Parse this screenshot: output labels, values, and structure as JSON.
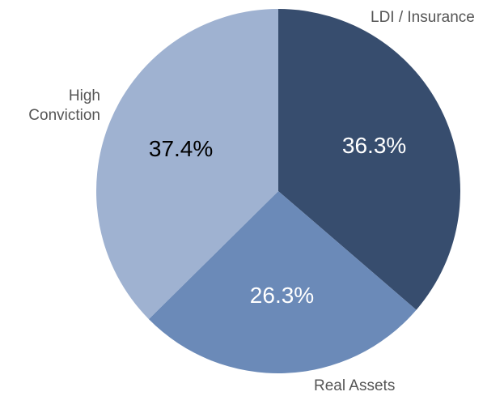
{
  "chart_data": {
    "type": "pie",
    "categories": [
      "LDI / Insurance",
      "Real Assets",
      "High Conviction"
    ],
    "values": [
      36.3,
      26.3,
      37.4
    ],
    "value_labels": [
      "36.3%",
      "26.3%",
      "37.4%"
    ],
    "colors": [
      "#374d6e",
      "#6b8ab8",
      "#9fb2d1"
    ]
  }
}
